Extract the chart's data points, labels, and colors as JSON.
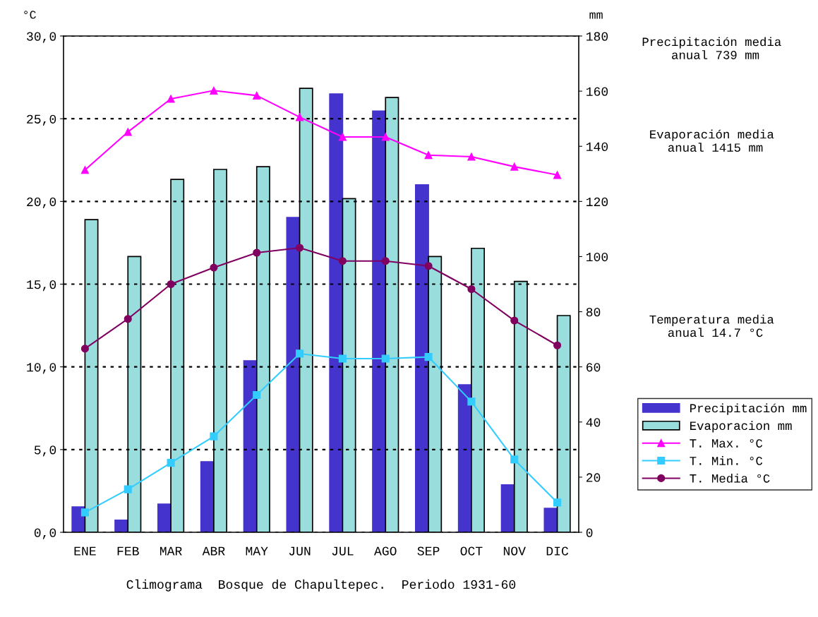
{
  "chart_data": {
    "type": "bar",
    "xlabel": "Climograma  Bosque de Chapultepec.  Periodo 1931-60",
    "ylabel": "°C",
    "y2label": "mm",
    "categories": [
      "ENE",
      "FEB",
      "MAR",
      "ABR",
      "MAY",
      "JUN",
      "JUL",
      "AGO",
      "SEP",
      "OCT",
      "NOV",
      "DIC"
    ],
    "series": [
      {
        "name": "Precipitación mm",
        "axis": "y2",
        "color": "#4433cc",
        "values": [
          9.2,
          4.4,
          10.2,
          25.6,
          62.2,
          114.2,
          159,
          152.8,
          126,
          53.5,
          17.2,
          8.7
        ]
      },
      {
        "name": "Evaporacion mm",
        "axis": "y2",
        "color": "#99dddd",
        "values": [
          113.4,
          100,
          128,
          131.6,
          132.6,
          161,
          121,
          157.7,
          100,
          103,
          91,
          78.6
        ]
      },
      {
        "name": "T. Max. °C",
        "type": "line",
        "marker": "triangle",
        "color": "#ff00ff",
        "values": [
          21.9,
          24.2,
          26.2,
          26.7,
          26.4,
          25.1,
          23.9,
          23.9,
          22.8,
          22.7,
          22.1,
          21.6
        ]
      },
      {
        "name": "T. Min. °C",
        "type": "line",
        "marker": "square",
        "color": "#33ccff",
        "values": [
          1.2,
          2.6,
          4.2,
          5.8,
          8.3,
          10.8,
          10.5,
          10.5,
          10.6,
          7.9,
          4.4,
          1.8
        ]
      },
      {
        "name": "T. Media °C",
        "type": "line",
        "marker": "circle",
        "color": "#800060",
        "values": [
          11.1,
          12.9,
          15.0,
          16.0,
          16.9,
          17.2,
          16.4,
          16.4,
          16.1,
          14.7,
          12.8,
          11.3
        ]
      }
    ],
    "ylim": [
      0,
      30
    ],
    "yticks": [
      {
        "value": 0,
        "label": "0,0"
      },
      {
        "value": 5,
        "label": "5,0"
      },
      {
        "value": 10,
        "label": "10,0"
      },
      {
        "value": 15,
        "label": "15,0"
      },
      {
        "value": 20,
        "label": "20,0"
      },
      {
        "value": 25,
        "label": "25,0"
      },
      {
        "value": 30,
        "label": "30,0"
      }
    ],
    "y2lim": [
      0,
      180
    ],
    "y2ticks": [
      0,
      20,
      40,
      60,
      80,
      100,
      120,
      140,
      160,
      180
    ],
    "grid": "y",
    "legend": "right",
    "annotations": [
      "Precipitación media\n anual 739 mm",
      "Evaporación media\n anual 1415 mm",
      "Temperatura media\n anual 14.7 °C"
    ]
  }
}
